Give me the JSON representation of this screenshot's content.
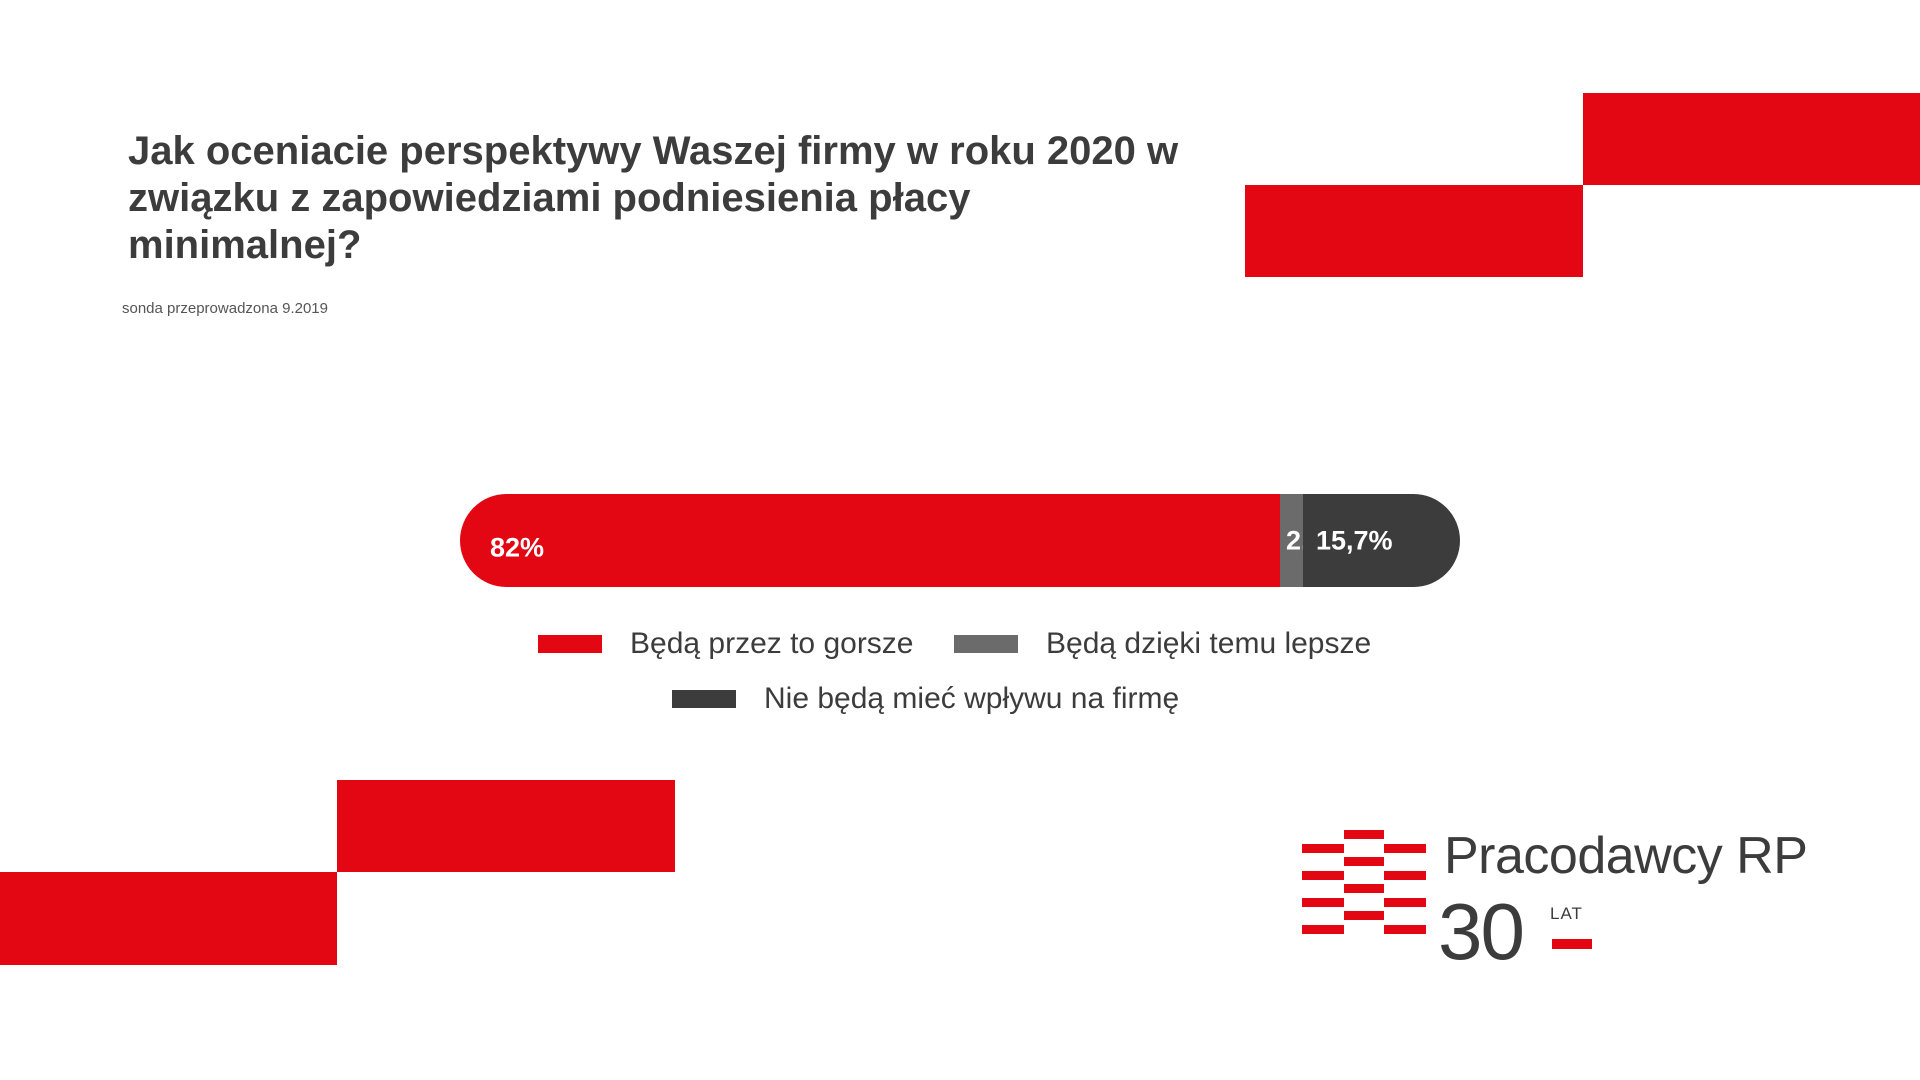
{
  "title": "Jak oceniacie perspektywy Waszej firmy w roku 2020 w związku z zapowiedziami podniesienia płacy minimalnej?",
  "subtitle": "sonda przeprowadzona 9.2019",
  "colors": {
    "red": "#e30613",
    "gray": "#6b6b6b",
    "dark": "#3c3c3c"
  },
  "chart_data": {
    "type": "bar",
    "orientation": "horizontal-stacked-100",
    "title": "Jak oceniacie perspektywy Waszej firmy w roku 2020 w związku z zapowiedziami podniesienia płacy minimalnej?",
    "categories": [
      ""
    ],
    "series": [
      {
        "name": "Będą przez to gorsze",
        "values": [
          82
        ],
        "label": "82%",
        "color": "#e30613"
      },
      {
        "name": "Będą dzięki temu lepsze",
        "values": [
          2.3
        ],
        "label": "2,3%",
        "color": "#6b6b6b"
      },
      {
        "name": "Nie będą mieć wpływu na firmę",
        "values": [
          15.7
        ],
        "label": "15,7%",
        "color": "#3c3c3c"
      }
    ],
    "legend": "bottom"
  },
  "logo": {
    "name": "Pracodawcy RP",
    "number": "30",
    "suffix": "LAT"
  }
}
